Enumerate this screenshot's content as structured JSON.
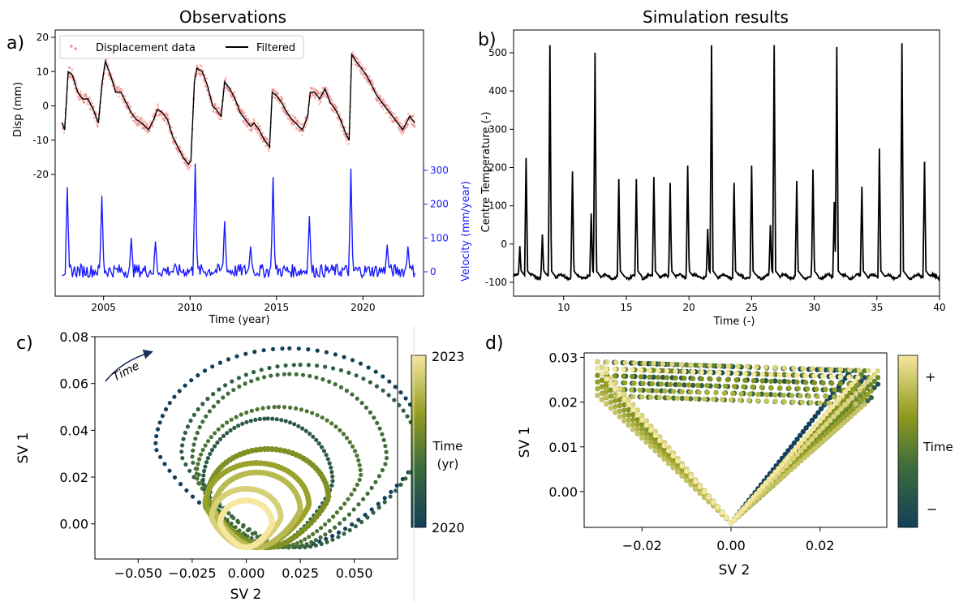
{
  "titles": {
    "observations": "Observations",
    "simulation": "Simulation results"
  },
  "panel_labels": {
    "a": "a)",
    "b": "b)",
    "c": "c)",
    "d": "d)"
  },
  "colors": {
    "displacement_points": "#f08080",
    "filtered": "#000000",
    "velocity": "#1a1aff",
    "colormap": [
      "#12405a",
      "#3d6b3b",
      "#8f9a1e",
      "#f5e79e"
    ]
  },
  "chart_data": [
    {
      "id": "a_displacement",
      "type": "scatter",
      "title": "Observations",
      "xlabel": "Time (year)",
      "ylabel": "Disp (mm)",
      "xlim": [
        2002.2,
        2023.5
      ],
      "ylim": [
        -20,
        20
      ],
      "xticks": [
        2005,
        2010,
        2015,
        2020
      ],
      "yticks": [
        -20,
        -10,
        0,
        10,
        20
      ],
      "legend": {
        "placement": "top",
        "entries": [
          "Displacement data",
          "Filtered"
        ]
      },
      "series": [
        {
          "name": "Filtered",
          "style": "line",
          "points": [
            [
              2002.6,
              -5
            ],
            [
              2002.75,
              -7
            ],
            [
              2002.95,
              10
            ],
            [
              2003.2,
              9
            ],
            [
              2003.5,
              4
            ],
            [
              2003.8,
              2
            ],
            [
              2004.1,
              2
            ],
            [
              2004.4,
              -1
            ],
            [
              2004.7,
              -5
            ],
            [
              2004.9,
              6
            ],
            [
              2005.1,
              13
            ],
            [
              2005.4,
              9
            ],
            [
              2005.7,
              4
            ],
            [
              2006.0,
              4
            ],
            [
              2006.3,
              1
            ],
            [
              2006.6,
              -2
            ],
            [
              2006.9,
              -4
            ],
            [
              2007.2,
              -5
            ],
            [
              2007.6,
              -7
            ],
            [
              2007.9,
              -4
            ],
            [
              2008.1,
              -1
            ],
            [
              2008.4,
              -2
            ],
            [
              2008.7,
              -4
            ],
            [
              2009.0,
              -9
            ],
            [
              2009.3,
              -12
            ],
            [
              2009.6,
              -15
            ],
            [
              2009.9,
              -17
            ],
            [
              2010.05,
              -16
            ],
            [
              2010.25,
              7
            ],
            [
              2010.4,
              11
            ],
            [
              2010.7,
              10
            ],
            [
              2011.0,
              6
            ],
            [
              2011.3,
              0
            ],
            [
              2011.5,
              -1
            ],
            [
              2011.8,
              -3
            ],
            [
              2012.0,
              7
            ],
            [
              2012.3,
              5
            ],
            [
              2012.6,
              2
            ],
            [
              2012.9,
              -2
            ],
            [
              2013.2,
              -4
            ],
            [
              2013.5,
              -6
            ],
            [
              2013.7,
              -5
            ],
            [
              2014.0,
              -7
            ],
            [
              2014.3,
              -10
            ],
            [
              2014.6,
              -12
            ],
            [
              2014.75,
              4
            ],
            [
              2015.0,
              3
            ],
            [
              2015.3,
              1
            ],
            [
              2015.6,
              -2
            ],
            [
              2015.9,
              -4
            ],
            [
              2016.1,
              -5
            ],
            [
              2016.5,
              -7
            ],
            [
              2016.8,
              -3
            ],
            [
              2016.95,
              4
            ],
            [
              2017.2,
              4
            ],
            [
              2017.5,
              2
            ],
            [
              2017.8,
              5
            ],
            [
              2018.1,
              1
            ],
            [
              2018.4,
              -1
            ],
            [
              2018.7,
              -4
            ],
            [
              2019.0,
              -8
            ],
            [
              2019.2,
              -10
            ],
            [
              2019.35,
              15
            ],
            [
              2019.6,
              13
            ],
            [
              2019.9,
              11
            ],
            [
              2020.2,
              9
            ],
            [
              2020.5,
              6
            ],
            [
              2020.8,
              3
            ],
            [
              2021.1,
              1
            ],
            [
              2021.4,
              -1
            ],
            [
              2021.7,
              -3
            ],
            [
              2022.0,
              -5
            ],
            [
              2022.3,
              -7
            ],
            [
              2022.5,
              -5
            ],
            [
              2022.7,
              -3
            ],
            [
              2023.0,
              -5
            ]
          ]
        },
        {
          "name": "Displacement data",
          "style": "points",
          "note": "scattered noisy samples around the filtered curve"
        }
      ]
    },
    {
      "id": "a_velocity",
      "type": "line",
      "ylabel": "Velocity (mm/year)",
      "ylim": [
        -30,
        320
      ],
      "yticks": [
        0,
        100,
        200,
        300
      ],
      "xlim": [
        2002.2,
        2023.5
      ],
      "spikes": [
        [
          2002.9,
          250
        ],
        [
          2004.9,
          225
        ],
        [
          2006.6,
          100
        ],
        [
          2008.0,
          90
        ],
        [
          2010.3,
          320
        ],
        [
          2012.0,
          150
        ],
        [
          2013.5,
          75
        ],
        [
          2014.8,
          280
        ],
        [
          2016.9,
          165
        ],
        [
          2019.3,
          305
        ],
        [
          2021.4,
          80
        ],
        [
          2022.6,
          75
        ]
      ],
      "baseline_range": [
        -20,
        20
      ]
    },
    {
      "id": "b_temperature",
      "type": "line",
      "title": "Simulation results",
      "xlabel": "Time (-)",
      "ylabel": "Centre Temperature (-)",
      "xlim": [
        6,
        40
      ],
      "ylim": [
        -110,
        540
      ],
      "xticks": [
        10,
        15,
        20,
        25,
        30,
        35,
        40
      ],
      "yticks": [
        -100,
        0,
        100,
        200,
        300,
        400,
        500
      ],
      "spikes": [
        [
          6.5,
          -5
        ],
        [
          7.0,
          225
        ],
        [
          8.3,
          25
        ],
        [
          8.9,
          520
        ],
        [
          10.7,
          190
        ],
        [
          12.2,
          80
        ],
        [
          12.5,
          500
        ],
        [
          14.4,
          170
        ],
        [
          15.8,
          170
        ],
        [
          17.2,
          175
        ],
        [
          18.5,
          160
        ],
        [
          19.9,
          205
        ],
        [
          21.5,
          40
        ],
        [
          21.8,
          520
        ],
        [
          23.6,
          160
        ],
        [
          25.0,
          205
        ],
        [
          26.5,
          50
        ],
        [
          26.8,
          520
        ],
        [
          28.6,
          165
        ],
        [
          29.9,
          195
        ],
        [
          31.6,
          110
        ],
        [
          31.8,
          515
        ],
        [
          33.8,
          150
        ],
        [
          35.2,
          250
        ],
        [
          37.0,
          525
        ],
        [
          38.8,
          215
        ]
      ],
      "baseline": -85
    },
    {
      "id": "c_phase",
      "type": "scatter",
      "xlabel": "SV 2",
      "ylabel": "SV 1",
      "xlim": [
        -0.07,
        0.07
      ],
      "ylim": [
        -0.015,
        0.08
      ],
      "xticks": [
        -0.05,
        -0.025,
        0.0,
        0.025,
        0.05
      ],
      "yticks": [
        0.0,
        0.02,
        0.04,
        0.06,
        0.08
      ],
      "colorbar": {
        "label": "Time (yr)",
        "min": "2020",
        "max": "2023"
      },
      "annotation": "Time"
    },
    {
      "id": "d_phase",
      "type": "scatter",
      "xlabel": "SV 2",
      "ylabel": "SV 1",
      "xlim": [
        -0.033,
        0.035
      ],
      "ylim": [
        -0.008,
        0.031
      ],
      "xticks": [
        -0.02,
        0.0,
        0.02
      ],
      "yticks": [
        0.0,
        0.01,
        0.02,
        0.03
      ],
      "colorbar": {
        "label": "Time",
        "min": "−",
        "max": "+"
      }
    }
  ]
}
